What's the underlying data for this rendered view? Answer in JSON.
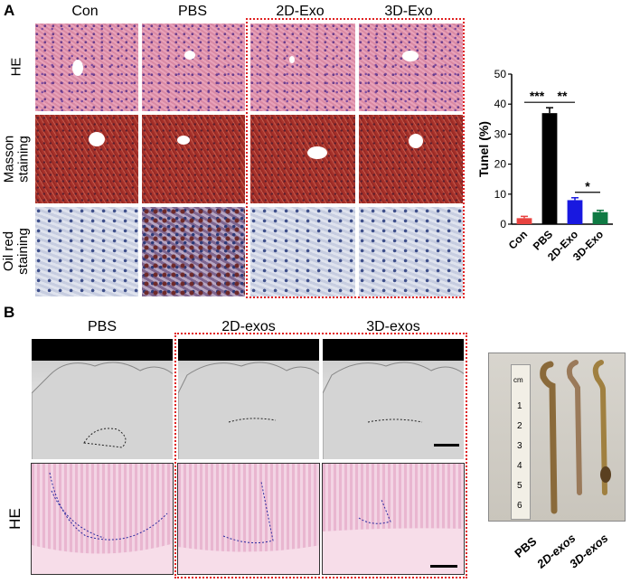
{
  "panel_a": {
    "letter": "A",
    "columns": [
      "Con",
      "PBS",
      "2D-Exo",
      "3D-Exo"
    ],
    "rows": [
      "HE",
      "Masson staining",
      "Oil red staining"
    ],
    "row_lines": [
      [
        "HE"
      ],
      [
        "Masson",
        "staining"
      ],
      [
        "Oil red",
        "staining"
      ]
    ]
  },
  "panel_b": {
    "letter": "B",
    "columns": [
      "PBS",
      "2D-exos",
      "3D-exos"
    ],
    "row_label": "HE",
    "photo_labels": [
      "PBS",
      "2D-exos",
      "3D-exos"
    ],
    "ruler_marks": [
      "cm",
      "1",
      "2",
      "3",
      "4",
      "5",
      "6"
    ]
  },
  "chart_data": {
    "type": "bar",
    "categories": [
      "Con",
      "PBS",
      "2D-Exo",
      "3D-Exo"
    ],
    "values": [
      2,
      37,
      8,
      4
    ],
    "errors": [
      0.6,
      1.8,
      0.8,
      0.6
    ],
    "colors": [
      "#e8423f",
      "#000000",
      "#1818e0",
      "#0f7a43"
    ],
    "ylabel": "Tunel (%)",
    "ylim": [
      0,
      50
    ],
    "yticks": [
      0,
      10,
      20,
      30,
      40,
      50
    ],
    "significance": [
      {
        "from": 0,
        "to": 1,
        "label": "***"
      },
      {
        "from": 1,
        "to": 2,
        "label": "**"
      },
      {
        "from": 2,
        "to": 3,
        "label": "*"
      }
    ]
  },
  "colors": {
    "highlight_box": "#e02020"
  }
}
